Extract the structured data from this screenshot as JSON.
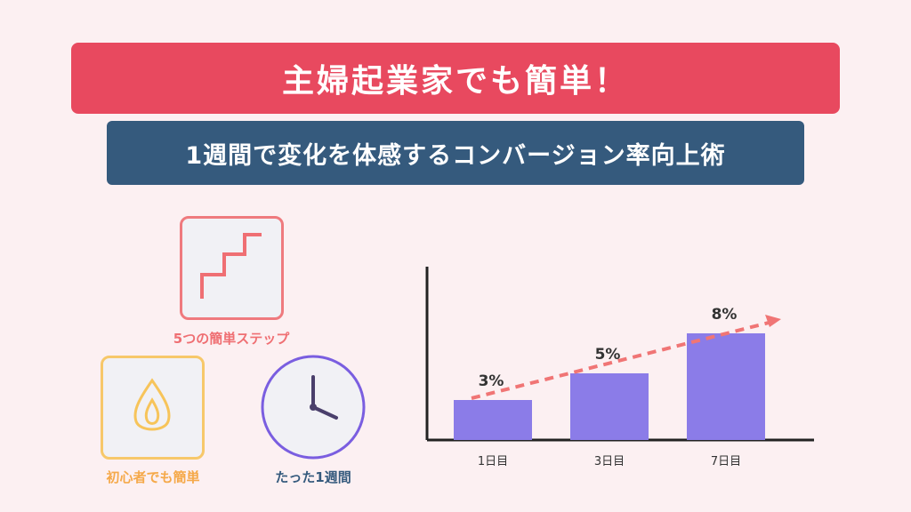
{
  "header": {
    "title": "主婦起業家でも簡単！",
    "subtitle": "1週間で変化を体感するコンバージョン率向上術"
  },
  "features": [
    {
      "label": "5つの簡単ステップ",
      "icon": "stairs-icon",
      "color": "#ef6f73"
    },
    {
      "label": "初心者でも簡単",
      "icon": "drop-icon",
      "color": "#f5a94a"
    },
    {
      "label": "たった1週間",
      "icon": "clock-icon",
      "color": "#7a5ee0"
    }
  ],
  "chart_data": {
    "type": "bar",
    "categories": [
      "1日目",
      "3日目",
      "7日目"
    ],
    "values": [
      3,
      5,
      8
    ],
    "value_labels": [
      "3%",
      "5%",
      "8%"
    ],
    "ylim": [
      0,
      13
    ],
    "bar_color": "#8b7ce8",
    "trend_color": "#f07575",
    "grid": false
  }
}
